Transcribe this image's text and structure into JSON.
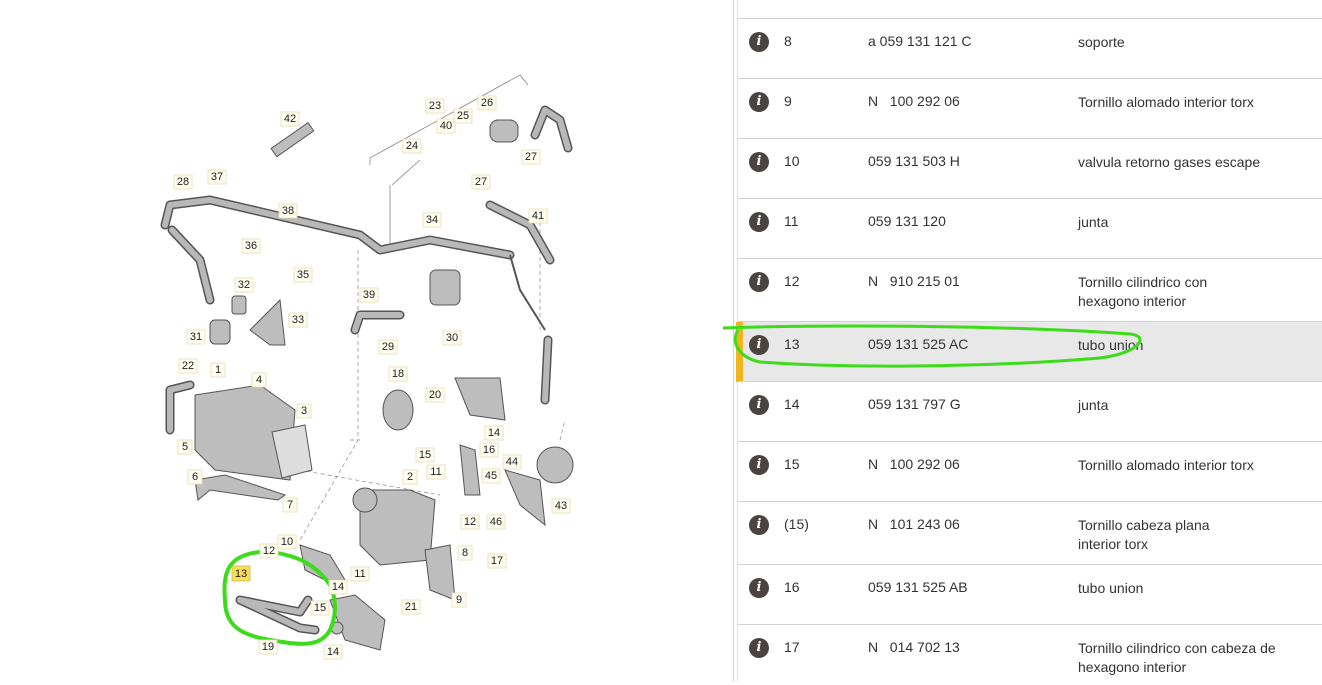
{
  "diagram": {
    "callouts": [
      "42",
      "23",
      "40",
      "26",
      "25",
      "24",
      "27",
      "27",
      "37",
      "28",
      "38",
      "34",
      "41",
      "36",
      "35",
      "32",
      "39",
      "33",
      "31",
      "29",
      "30",
      "22",
      "1",
      "4",
      "18",
      "20",
      "3",
      "14",
      "15",
      "16",
      "5",
      "11",
      "44",
      "45",
      "6",
      "2",
      "7",
      "12",
      "46",
      "43",
      "10",
      "12",
      "8",
      "17",
      "13",
      "14",
      "11",
      "15",
      "21",
      "9",
      "19",
      "14"
    ],
    "highlighted_callout": "13"
  },
  "parts_list": {
    "selected_position": "13",
    "rows": [
      {
        "pos": "8",
        "number": "a 059 131 121 C",
        "description": "soporte"
      },
      {
        "pos": "9",
        "number": "N   100 292 06",
        "description": "Tornillo alomado interior torx"
      },
      {
        "pos": "10",
        "number": "059 131 503 H",
        "description": "valvula retorno gases escape"
      },
      {
        "pos": "11",
        "number": "059 131 120",
        "description": "junta"
      },
      {
        "pos": "12",
        "number": "N   910 215 01",
        "description": "Tornillo cilindrico con hexagono interior"
      },
      {
        "pos": "13",
        "number": "059 131 525 AC",
        "description": "tubo union"
      },
      {
        "pos": "14",
        "number": "059 131 797 G",
        "description": "junta"
      },
      {
        "pos": "15",
        "number": "N   100 292 06",
        "description": "Tornillo alomado interior torx"
      },
      {
        "pos": "(15)",
        "number": "N   101 243 06",
        "description": "Tornillo cabeza plana interior torx"
      },
      {
        "pos": "16",
        "number": "059 131 525 AB",
        "description": "tubo union"
      },
      {
        "pos": "17",
        "number": "N   014 702 13",
        "description": "Tornillo cilindrico con cabeza de hexagono interior"
      }
    ],
    "info_icon": "info-icon"
  },
  "colors": {
    "highlight_bar": "#f0b41c",
    "selected_row": "#e8e8e8",
    "annotation": "#3ddc1a",
    "callout_highlight": "#f7dd5e"
  }
}
